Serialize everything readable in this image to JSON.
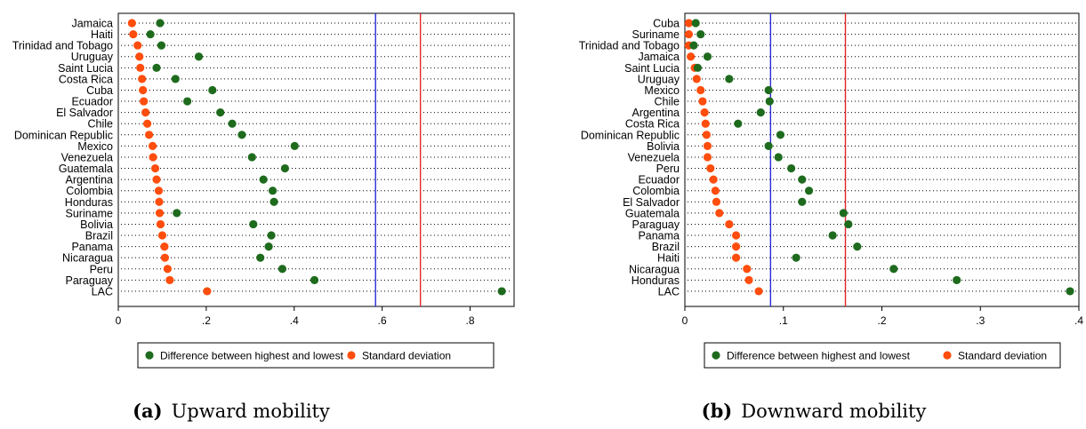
{
  "colors": {
    "series_diff": "#1e6b1e",
    "series_sd": "#ff4d0d",
    "blue_line": "#2b2bd6",
    "red_line": "#e0262b"
  },
  "chart_data": [
    {
      "type": "scatter",
      "caption_letter": "(a)",
      "caption_text": "Upward mobility",
      "xlim": [
        0,
        0.9
      ],
      "xticks": [
        0,
        0.2,
        0.4,
        0.6,
        0.8
      ],
      "xtick_labels": [
        "0",
        ".2",
        ".4",
        ".6",
        ".8"
      ],
      "grid": "horizontal dotted",
      "legend_position": "bottom",
      "reference_lines": [
        {
          "color": "blue",
          "x": 0.585
        },
        {
          "color": "red",
          "x": 0.687
        }
      ],
      "categories": [
        "Jamaica",
        "Haiti",
        "Trinidad and Tobago",
        "Uruguay",
        "Saint Lucia",
        "Costa Rica",
        "Cuba",
        "Ecuador",
        "El Salvador",
        "Chile",
        "Dominican Republic",
        "Mexico",
        "Venezuela",
        "Guatemala",
        "Argentina",
        "Colombia",
        "Honduras",
        "Suriname",
        "Bolivia",
        "Brazil",
        "Panama",
        "Nicaragua",
        "Peru",
        "Paraguay",
        "LAC"
      ],
      "series": [
        {
          "name": "Difference between highest and lowest",
          "values": [
            0.095,
            0.073,
            0.098,
            0.183,
            0.087,
            0.13,
            0.214,
            0.157,
            0.232,
            0.259,
            0.281,
            0.401,
            0.304,
            0.379,
            0.33,
            0.351,
            0.354,
            0.133,
            0.307,
            0.348,
            0.342,
            0.323,
            0.373,
            0.446,
            0.872
          ]
        },
        {
          "name": "Standard deviation",
          "values": [
            0.031,
            0.034,
            0.044,
            0.048,
            0.05,
            0.054,
            0.056,
            0.058,
            0.062,
            0.066,
            0.07,
            0.078,
            0.079,
            0.084,
            0.087,
            0.092,
            0.093,
            0.094,
            0.096,
            0.1,
            0.105,
            0.106,
            0.112,
            0.117,
            0.202
          ]
        }
      ]
    },
    {
      "type": "scatter",
      "caption_letter": "(b)",
      "caption_text": "Downward mobility",
      "xlim": [
        0,
        0.4
      ],
      "xticks": [
        0,
        0.1,
        0.2,
        0.3,
        0.4
      ],
      "xtick_labels": [
        "0",
        ".1",
        ".2",
        ".3",
        ".4"
      ],
      "grid": "horizontal dotted",
      "legend_position": "bottom",
      "reference_lines": [
        {
          "color": "blue",
          "x": 0.087
        },
        {
          "color": "red",
          "x": 0.163
        }
      ],
      "categories": [
        "Cuba",
        "Suriname",
        "Trinidad and Tobago",
        "Jamaica",
        "Saint Lucia",
        "Uruguay",
        "Mexico",
        "Chile",
        "Argentina",
        "Costa Rica",
        "Dominican Republic",
        "Bolivia",
        "Venezuela",
        "Peru",
        "Ecuador",
        "Colombia",
        "El Salvador",
        "Guatemala",
        "Paraguay",
        "Panama",
        "Brazil",
        "Haiti",
        "Nicaragua",
        "Honduras",
        "LAC"
      ],
      "series": [
        {
          "name": "Difference between highest and lowest",
          "values": [
            0.011,
            0.016,
            0.009,
            0.023,
            0.013,
            0.045,
            0.085,
            0.086,
            0.077,
            0.054,
            0.097,
            0.085,
            0.095,
            0.108,
            0.119,
            0.126,
            0.119,
            0.161,
            0.166,
            0.15,
            0.175,
            0.113,
            0.212,
            0.276,
            0.391
          ]
        },
        {
          "name": "Standard deviation",
          "values": [
            0.004,
            0.004,
            0.004,
            0.006,
            0.01,
            0.012,
            0.016,
            0.018,
            0.02,
            0.021,
            0.022,
            0.023,
            0.023,
            0.026,
            0.029,
            0.031,
            0.032,
            0.035,
            0.045,
            0.052,
            0.052,
            0.052,
            0.063,
            0.065,
            0.075
          ]
        }
      ]
    }
  ]
}
